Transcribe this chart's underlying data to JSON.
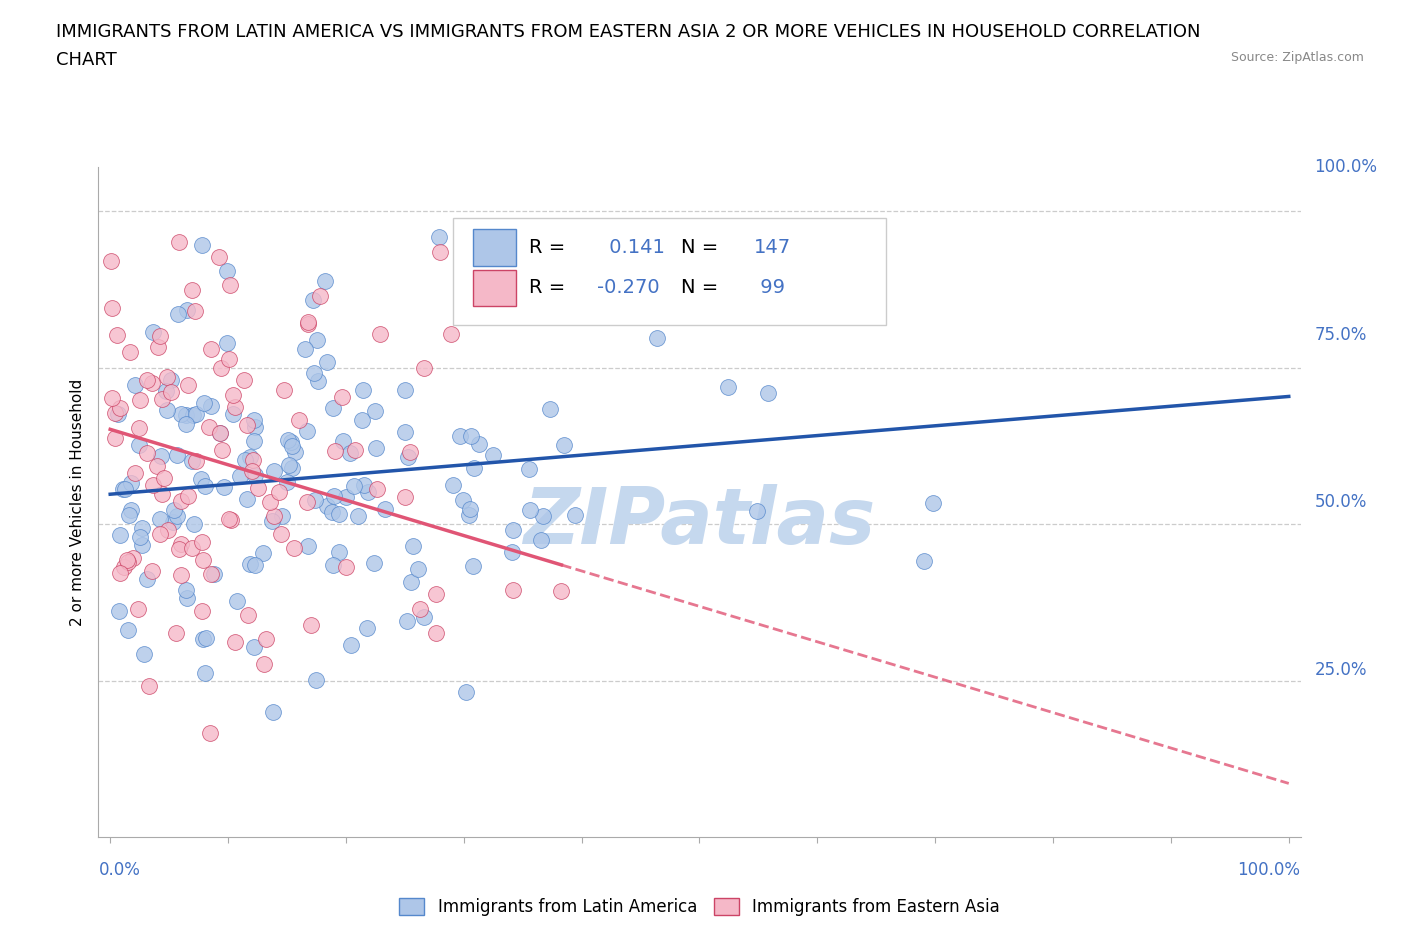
{
  "title_line1": "IMMIGRANTS FROM LATIN AMERICA VS IMMIGRANTS FROM EASTERN ASIA 2 OR MORE VEHICLES IN HOUSEHOLD CORRELATION",
  "title_line2": "CHART",
  "source_text": "Source: ZipAtlas.com",
  "ylabel": "2 or more Vehicles in Household",
  "series1_label": "Immigrants from Latin America",
  "series2_label": "Immigrants from Eastern Asia",
  "series1_color": "#aec6e8",
  "series2_color": "#f5b8c8",
  "series1_line_color": "#2255aa",
  "series2_line_color": "#e05575",
  "series1_edge_color": "#5588cc",
  "series2_edge_color": "#cc4466",
  "series1_R": 0.141,
  "series1_N": 147,
  "series2_R": -0.27,
  "series2_N": 99,
  "background_color": "#ffffff",
  "grid_color": "#cccccc",
  "watermark_text": "ZIPatlas",
  "watermark_color": "#c5d8ee",
  "title_fontsize": 13,
  "axis_label_fontsize": 11,
  "tick_fontsize": 12,
  "legend_fontsize": 14,
  "seed1": 42,
  "seed2": 77
}
